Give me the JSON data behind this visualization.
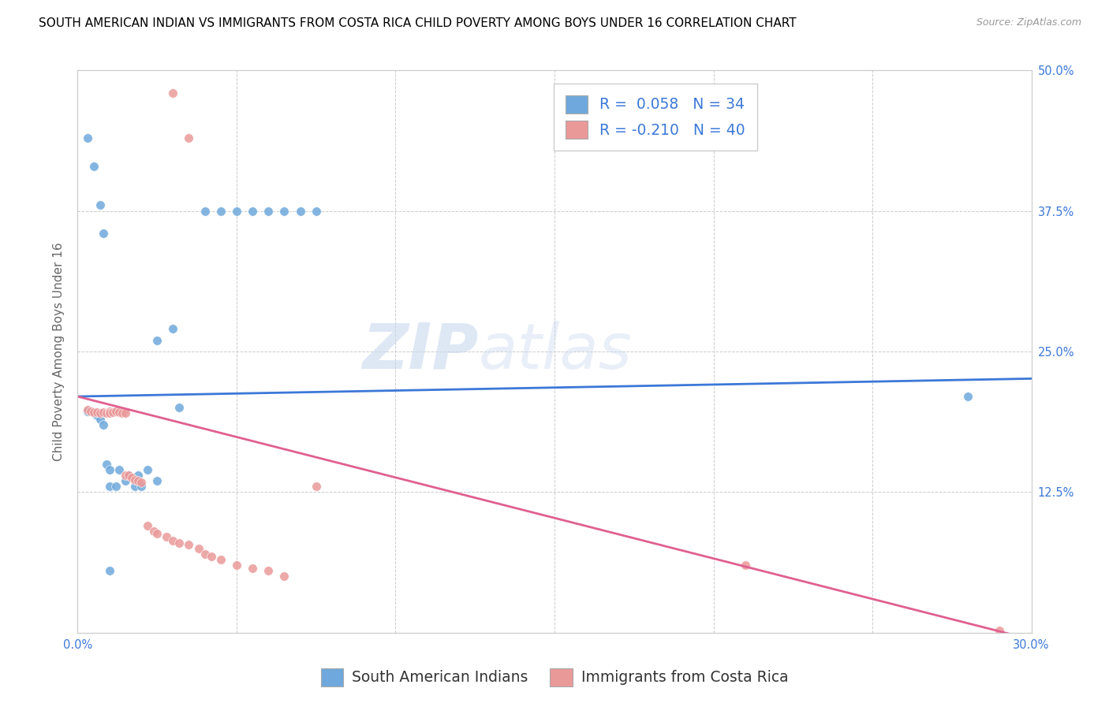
{
  "title": "SOUTH AMERICAN INDIAN VS IMMIGRANTS FROM COSTA RICA CHILD POVERTY AMONG BOYS UNDER 16 CORRELATION CHART",
  "source": "Source: ZipAtlas.com",
  "ylabel": "Child Poverty Among Boys Under 16",
  "xlim": [
    0.0,
    0.3
  ],
  "ylim": [
    0.0,
    0.5
  ],
  "xticks": [
    0.0,
    0.05,
    0.1,
    0.15,
    0.2,
    0.25,
    0.3
  ],
  "xticklabels": [
    "0.0%",
    "",
    "",
    "",
    "",
    "",
    "30.0%"
  ],
  "yticks": [
    0.0,
    0.125,
    0.25,
    0.375,
    0.5
  ],
  "yticklabels_right": [
    "",
    "12.5%",
    "25.0%",
    "37.5%",
    "50.0%"
  ],
  "color_blue": "#6fa8dc",
  "color_pink": "#ea9999",
  "line_blue": "#3c78d8",
  "line_pink": "#e06090",
  "watermark_zip": "ZIP",
  "watermark_atlas": "atlas",
  "blue_x": [
    0.003,
    0.005,
    0.006,
    0.007,
    0.008,
    0.009,
    0.01,
    0.01,
    0.012,
    0.013,
    0.015,
    0.016,
    0.018,
    0.019,
    0.02,
    0.022,
    0.025,
    0.025,
    0.03,
    0.032,
    0.04,
    0.045,
    0.05,
    0.055,
    0.06,
    0.065,
    0.07,
    0.075,
    0.003,
    0.005,
    0.007,
    0.008,
    0.01,
    0.28
  ],
  "blue_y": [
    0.197,
    0.195,
    0.193,
    0.19,
    0.185,
    0.15,
    0.145,
    0.13,
    0.13,
    0.145,
    0.135,
    0.14,
    0.13,
    0.14,
    0.13,
    0.145,
    0.135,
    0.26,
    0.27,
    0.2,
    0.375,
    0.375,
    0.375,
    0.375,
    0.375,
    0.375,
    0.375,
    0.375,
    0.44,
    0.415,
    0.38,
    0.355,
    0.055,
    0.21
  ],
  "pink_x": [
    0.003,
    0.004,
    0.005,
    0.006,
    0.007,
    0.008,
    0.009,
    0.01,
    0.01,
    0.011,
    0.012,
    0.013,
    0.014,
    0.015,
    0.015,
    0.016,
    0.017,
    0.018,
    0.019,
    0.02,
    0.022,
    0.024,
    0.025,
    0.028,
    0.03,
    0.032,
    0.035,
    0.038,
    0.04,
    0.042,
    0.045,
    0.05,
    0.055,
    0.06,
    0.065,
    0.03,
    0.035,
    0.075,
    0.21,
    0.29
  ],
  "pink_y": [
    0.198,
    0.197,
    0.196,
    0.196,
    0.195,
    0.196,
    0.195,
    0.197,
    0.195,
    0.196,
    0.197,
    0.196,
    0.195,
    0.195,
    0.14,
    0.14,
    0.138,
    0.136,
    0.135,
    0.134,
    0.095,
    0.09,
    0.088,
    0.085,
    0.082,
    0.08,
    0.078,
    0.075,
    0.07,
    0.068,
    0.065,
    0.06,
    0.057,
    0.055,
    0.05,
    0.48,
    0.44,
    0.13,
    0.06,
    0.002
  ],
  "blue_intercept": 0.21,
  "blue_slope": 0.053,
  "pink_intercept": 0.21,
  "pink_slope": -0.72,
  "marker_size": 70,
  "background_color": "#ffffff",
  "grid_color": "#cccccc",
  "tick_color": "#3c78d8",
  "title_color": "#000000",
  "title_fontsize": 11.0,
  "label_fontsize": 11,
  "tick_fontsize": 10.5,
  "legend_fontsize": 13.5
}
